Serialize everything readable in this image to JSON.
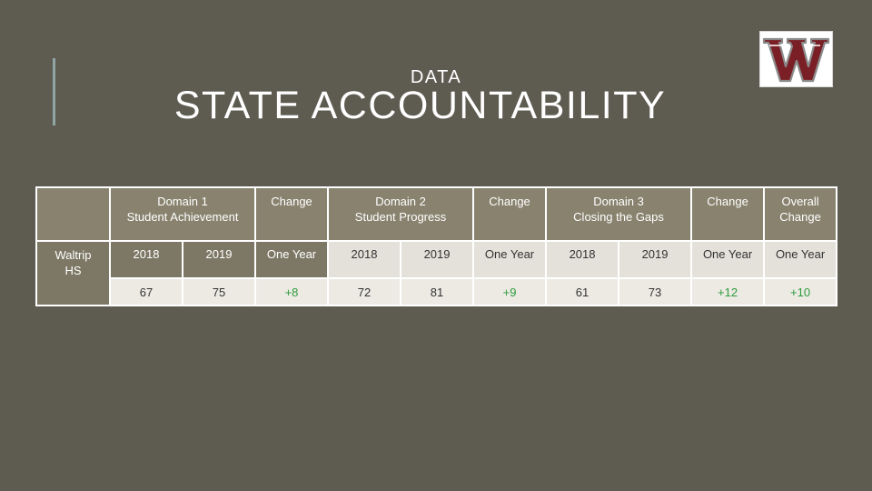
{
  "header": {
    "subtitle": "DATA",
    "title": "STATE ACCOUNTABILITY"
  },
  "logo": {
    "letter": "W",
    "icon": "school-w-logo",
    "colors": {
      "fill": "#7a1f25",
      "outline": "#8a8a8a"
    }
  },
  "table": {
    "header_row": {
      "domain1": [
        "Domain 1",
        "Student Achievement"
      ],
      "change1": "Change",
      "domain2": [
        "Domain 2",
        "Student Progress"
      ],
      "change2": "Change",
      "domain3": [
        "Domain 3",
        "Closing the Gaps"
      ],
      "change3": "Change",
      "overall": [
        "Overall",
        "Change"
      ]
    },
    "school": [
      "Waltrip",
      "HS"
    ],
    "year_row": {
      "d1_y1": "2018",
      "d1_y2": "2019",
      "c1": "One Year",
      "d2_y1": "2018",
      "d2_y2": "2019",
      "c2": "One Year",
      "d3_y1": "2018",
      "d3_y2": "2019",
      "c3": "One Year",
      "overall": "One Year"
    },
    "value_row": {
      "d1_y1": "67",
      "d1_y2": "75",
      "c1": "+8",
      "d2_y1": "72",
      "d2_y2": "81",
      "c2": "+9",
      "d3_y1": "61",
      "d3_y2": "73",
      "c3": "+12",
      "overall": "+10"
    }
  },
  "colors": {
    "background": "#5e5b51",
    "accent_bar": "#8fa6a4",
    "header_cell": "#88826e",
    "positive_change": "#2e9b3c"
  }
}
